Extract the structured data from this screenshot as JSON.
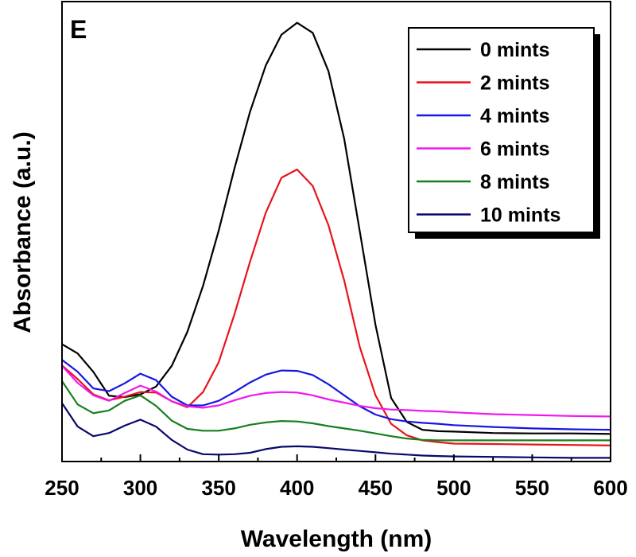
{
  "panel_label": "E",
  "chart_data": {
    "type": "line",
    "xlabel": "Wavelength (nm)",
    "ylabel": "Absorbance (a.u.)",
    "xlim": [
      250,
      600
    ],
    "ylim": [
      0,
      100
    ],
    "xticks": [
      250,
      300,
      350,
      400,
      450,
      500,
      550,
      600
    ],
    "xtick_labels": [
      "250",
      "300",
      "350",
      "400",
      "450",
      "500",
      "550",
      "600"
    ],
    "grid": false,
    "legend_position": "top-right",
    "x": [
      250,
      260,
      270,
      280,
      290,
      300,
      310,
      320,
      330,
      340,
      350,
      360,
      370,
      380,
      390,
      400,
      410,
      420,
      430,
      440,
      450,
      460,
      470,
      480,
      490,
      500,
      525,
      550,
      575,
      600
    ],
    "series": [
      {
        "name": "0 mints",
        "color": "#000000",
        "values": [
          25.5,
          23.5,
          19.5,
          14.3,
          14.0,
          14.6,
          16.3,
          20.8,
          28.2,
          38.2,
          50.2,
          63.7,
          76.1,
          86.1,
          92.8,
          95.4,
          93.2,
          84.9,
          70.2,
          50.0,
          29.7,
          13.8,
          8.6,
          6.9,
          6.6,
          6.5,
          6.2,
          6.1,
          6.1,
          6.0
        ]
      },
      {
        "name": "2 mints",
        "color": "#e8141b",
        "values": [
          20.9,
          17.9,
          14.6,
          13.3,
          14.1,
          15.1,
          15.0,
          13.1,
          11.8,
          15.1,
          21.6,
          32.0,
          43.5,
          54.1,
          61.7,
          63.5,
          59.9,
          51.4,
          39.4,
          24.9,
          14.4,
          8.2,
          5.7,
          4.6,
          4.2,
          3.9,
          3.8,
          3.7,
          3.6,
          3.5
        ]
      },
      {
        "name": "4 mints",
        "color": "#1717e0",
        "values": [
          22.1,
          19.5,
          15.9,
          15.3,
          17.0,
          19.1,
          17.7,
          14.1,
          12.2,
          12.2,
          13.2,
          15.1,
          17.2,
          18.9,
          19.8,
          19.7,
          18.8,
          16.8,
          14.4,
          12.0,
          10.2,
          9.2,
          8.7,
          8.4,
          8.2,
          7.9,
          7.5,
          7.2,
          7.0,
          6.9
        ]
      },
      {
        "name": "6 mints",
        "color": "#ef18ef",
        "values": [
          20.8,
          17.1,
          14.4,
          13.2,
          14.9,
          16.5,
          15.2,
          13.1,
          12.0,
          11.7,
          12.2,
          13.3,
          14.3,
          14.9,
          15.1,
          15.0,
          14.4,
          13.5,
          12.8,
          12.1,
          11.6,
          11.3,
          11.2,
          11.0,
          10.9,
          10.7,
          10.3,
          10.1,
          9.9,
          9.8
        ]
      },
      {
        "name": "8 mints",
        "color": "#16801e",
        "values": [
          17.5,
          12.4,
          10.5,
          11.1,
          13.2,
          14.4,
          12.1,
          8.9,
          7.1,
          6.7,
          6.7,
          7.2,
          8.0,
          8.5,
          8.8,
          8.7,
          8.3,
          7.7,
          7.2,
          6.7,
          6.1,
          5.5,
          5.0,
          4.7,
          4.6,
          4.6,
          4.6,
          4.6,
          4.6,
          4.6
        ]
      },
      {
        "name": "10 mints",
        "color": "#08086b",
        "values": [
          12.7,
          7.6,
          5.5,
          6.2,
          7.8,
          9.1,
          7.6,
          4.7,
          2.6,
          1.6,
          1.5,
          1.6,
          1.9,
          2.7,
          3.2,
          3.3,
          3.2,
          2.9,
          2.6,
          2.3,
          2.0,
          1.7,
          1.5,
          1.3,
          1.2,
          1.1,
          1.0,
          0.9,
          0.8,
          0.8
        ]
      }
    ]
  }
}
